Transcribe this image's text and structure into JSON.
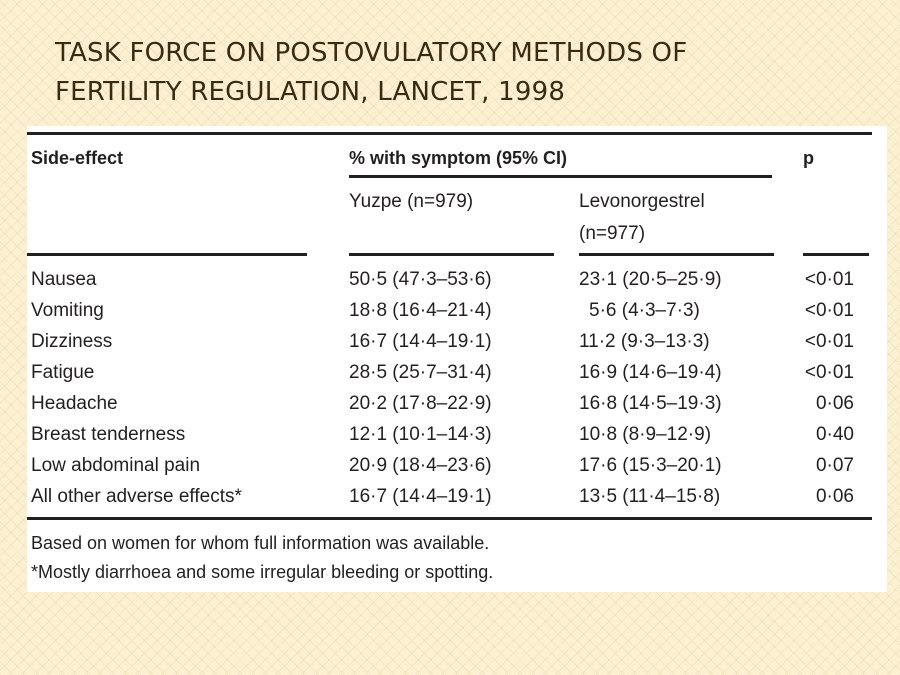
{
  "slide": {
    "title_line1": "TASK FORCE ON POSTOVULATORY METHODS OF",
    "title_line2": "FERTILITY REGULATION, LANCET, 1998"
  },
  "table": {
    "headers": {
      "side_effect": "Side-effect",
      "pct_group": "% with symptom (95% CI)",
      "p": "p",
      "yuzpe": "Yuzpe (n=979)",
      "levo_line1": "Levonorgestrel",
      "levo_line2": "(n=977)"
    },
    "rows": [
      {
        "effect": "Nausea",
        "yuzpe": "50·5 (47·3–53·6)",
        "levo": "23·1 (20·5–25·9)",
        "p": "<0·01"
      },
      {
        "effect": "Vomiting",
        "yuzpe": "18·8 (16·4–21·4)",
        "levo": "5·6 (4·3–7·3)",
        "p": "<0·01"
      },
      {
        "effect": "Dizziness",
        "yuzpe": "16·7 (14·4–19·1)",
        "levo": "11·2 (9·3–13·3)",
        "p": "<0·01"
      },
      {
        "effect": "Fatigue",
        "yuzpe": "28·5 (25·7–31·4)",
        "levo": "16·9 (14·6–19·4)",
        "p": "<0·01"
      },
      {
        "effect": "Headache",
        "yuzpe": "20·2 (17·8–22·9)",
        "levo": "16·8 (14·5–19·3)",
        "p": "0·06"
      },
      {
        "effect": "Breast tenderness",
        "yuzpe": "12·1 (10·1–14·3)",
        "levo": "10·8 (8·9–12·9)",
        "p": "0·40"
      },
      {
        "effect": "Low abdominal pain",
        "yuzpe": "20·9 (18·4–23·6)",
        "levo": "17·6 (15·3–20·1)",
        "p": "0·07"
      },
      {
        "effect": "All other adverse effects*",
        "yuzpe": "16·7 (14·4–19·1)",
        "levo": "13·5 (11·4–15·8)",
        "p": "0·06"
      }
    ],
    "footnotes": [
      "Based on women for whom full information was available.",
      "*Mostly diarrhoea and some irregular bleeding or spotting."
    ]
  }
}
